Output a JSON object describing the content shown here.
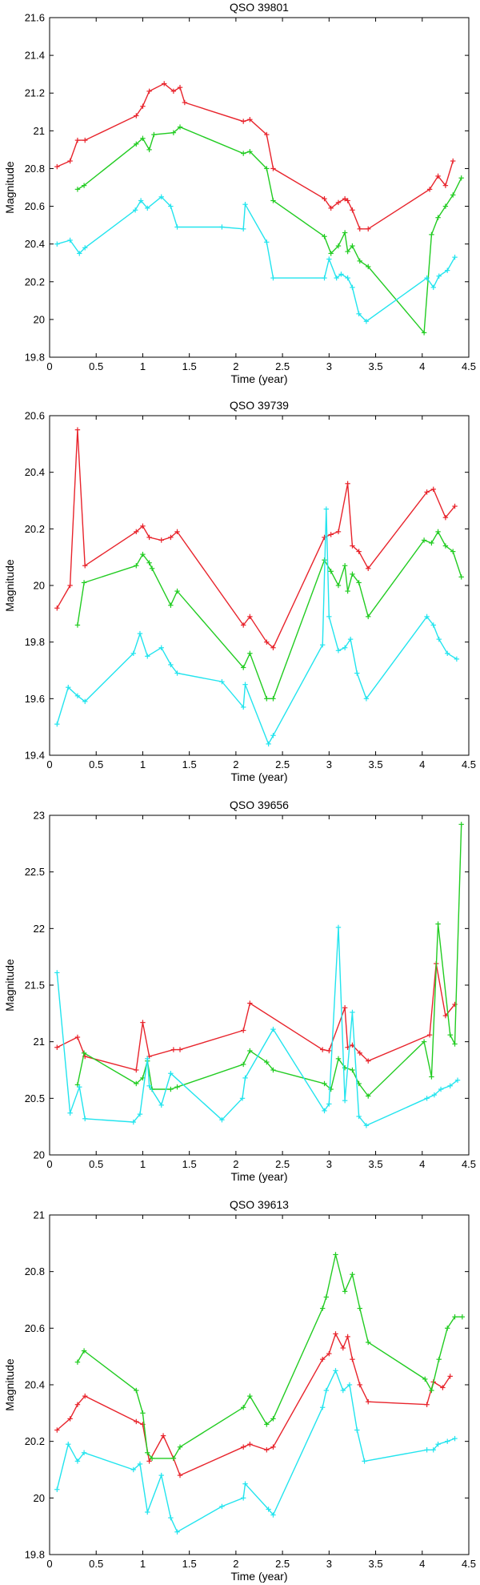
{
  "colors": {
    "red": "#e8242c",
    "green": "#22cc22",
    "cyan": "#22e4ee"
  },
  "chart_data": [
    {
      "type": "line",
      "title": "QSO 39801",
      "xlabel": "Time (year)",
      "ylabel": "Magnitude",
      "xlim": [
        0,
        4.5
      ],
      "ylim": [
        19.8,
        21.6
      ],
      "xticks": [
        0,
        0.5,
        1,
        1.5,
        2,
        2.5,
        3,
        3.5,
        4,
        4.5
      ],
      "xtick_labels": [
        "0",
        "0.5",
        "1",
        "1.5",
        "2",
        "2.5",
        "3",
        "3.5",
        "4",
        "4.5"
      ],
      "yticks": [
        19.8,
        20,
        20.2,
        20.4,
        20.6,
        20.8,
        21,
        21.2,
        21.4,
        21.6
      ],
      "ytick_labels": [
        "19.8",
        "20",
        "20.2",
        "20.4",
        "20.6",
        "20.8",
        "21",
        "21.2",
        "21.4",
        "21.6"
      ],
      "series": [
        {
          "name": "red",
          "color": "red",
          "x": [
            0.08,
            0.22,
            0.3,
            0.38,
            0.93,
            1.0,
            1.07,
            1.23,
            1.33,
            1.4,
            1.45,
            2.08,
            2.15,
            2.33,
            2.4,
            2.95,
            3.02,
            3.1,
            3.17,
            3.2,
            3.25,
            3.33,
            3.42,
            4.08,
            4.17,
            4.25,
            4.33
          ],
          "y": [
            20.81,
            20.84,
            20.95,
            20.95,
            21.08,
            21.13,
            21.21,
            21.25,
            21.21,
            21.23,
            21.15,
            21.05,
            21.06,
            20.98,
            20.8,
            20.64,
            20.59,
            20.62,
            20.64,
            20.63,
            20.58,
            20.48,
            20.48,
            20.69,
            20.76,
            20.71,
            20.84
          ]
        },
        {
          "name": "green",
          "color": "green",
          "x": [
            0.3,
            0.37,
            0.93,
            1.0,
            1.07,
            1.12,
            1.33,
            1.4,
            2.08,
            2.15,
            2.33,
            2.4,
            2.95,
            3.02,
            3.1,
            3.17,
            3.2,
            3.25,
            3.33,
            3.42,
            4.02,
            4.1,
            4.17,
            4.25,
            4.33,
            4.42
          ],
          "y": [
            20.69,
            20.71,
            20.93,
            20.96,
            20.9,
            20.98,
            20.99,
            21.02,
            20.88,
            20.89,
            20.8,
            20.63,
            20.44,
            20.35,
            20.39,
            20.46,
            20.36,
            20.39,
            20.31,
            20.28,
            19.93,
            20.45,
            20.54,
            20.6,
            20.66,
            20.75
          ]
        },
        {
          "name": "cyan",
          "color": "cyan",
          "x": [
            0.08,
            0.22,
            0.32,
            0.38,
            0.92,
            0.98,
            1.05,
            1.2,
            1.3,
            1.37,
            1.85,
            2.08,
            2.1,
            2.33,
            2.4,
            2.95,
            3.0,
            3.08,
            3.13,
            3.2,
            3.25,
            3.32,
            3.4,
            4.05,
            4.12,
            4.18,
            4.27,
            4.35
          ],
          "y": [
            20.4,
            20.42,
            20.35,
            20.38,
            20.58,
            20.63,
            20.59,
            20.65,
            20.6,
            20.49,
            20.49,
            20.48,
            20.61,
            20.41,
            20.22,
            20.22,
            20.32,
            20.22,
            20.24,
            20.22,
            20.17,
            20.03,
            19.99,
            20.22,
            20.17,
            20.23,
            20.26,
            20.33
          ]
        }
      ]
    },
    {
      "type": "line",
      "title": "QSO 39739",
      "xlabel": "Time (year)",
      "ylabel": "Magnitude",
      "xlim": [
        0,
        4.5
      ],
      "ylim": [
        19.4,
        20.6
      ],
      "xticks": [
        0,
        0.5,
        1,
        1.5,
        2,
        2.5,
        3,
        3.5,
        4,
        4.5
      ],
      "xtick_labels": [
        "0",
        "0.5",
        "1",
        "1.5",
        "2",
        "2.5",
        "3",
        "3.5",
        "4",
        "4.5"
      ],
      "yticks": [
        19.4,
        19.6,
        19.8,
        20,
        20.2,
        20.4,
        20.6
      ],
      "ytick_labels": [
        "19.4",
        "19.6",
        "19.8",
        "20",
        "20.2",
        "20.4",
        "20.6"
      ],
      "series": [
        {
          "name": "red",
          "color": "red",
          "x": [
            0.08,
            0.22,
            0.3,
            0.38,
            0.93,
            1.0,
            1.07,
            1.2,
            1.3,
            1.37,
            2.08,
            2.15,
            2.33,
            2.4,
            2.95,
            3.02,
            3.1,
            3.2,
            3.25,
            3.32,
            3.42,
            4.05,
            4.12,
            4.25,
            4.35
          ],
          "y": [
            19.92,
            20.0,
            20.55,
            20.07,
            20.19,
            20.21,
            20.17,
            20.16,
            20.17,
            20.19,
            19.86,
            19.89,
            19.8,
            19.78,
            20.17,
            20.18,
            20.19,
            20.36,
            20.14,
            20.12,
            20.06,
            20.33,
            20.34,
            20.24,
            20.28
          ]
        },
        {
          "name": "green",
          "color": "green",
          "x": [
            0.3,
            0.37,
            0.93,
            1.0,
            1.07,
            1.1,
            1.3,
            1.37,
            2.08,
            2.15,
            2.33,
            2.4,
            2.95,
            3.02,
            3.1,
            3.17,
            3.2,
            3.25,
            3.32,
            3.42,
            4.02,
            4.1,
            4.17,
            4.25,
            4.33,
            4.42
          ],
          "y": [
            19.86,
            20.01,
            20.07,
            20.11,
            20.08,
            20.06,
            19.93,
            19.98,
            19.71,
            19.76,
            19.6,
            19.6,
            20.09,
            20.05,
            20.0,
            20.07,
            19.98,
            20.04,
            20.01,
            19.89,
            20.16,
            20.15,
            20.19,
            20.14,
            20.12,
            20.03
          ]
        },
        {
          "name": "cyan",
          "color": "cyan",
          "x": [
            0.08,
            0.2,
            0.3,
            0.38,
            0.9,
            0.97,
            1.05,
            1.2,
            1.3,
            1.37,
            1.85,
            2.08,
            2.1,
            2.35,
            2.4,
            2.93,
            2.97,
            3.0,
            3.1,
            3.17,
            3.23,
            3.3,
            3.4,
            4.05,
            4.12,
            4.18,
            4.27,
            4.37
          ],
          "y": [
            19.51,
            19.64,
            19.61,
            19.59,
            19.76,
            19.83,
            19.75,
            19.78,
            19.72,
            19.69,
            19.66,
            19.57,
            19.65,
            19.44,
            19.47,
            19.79,
            20.27,
            19.89,
            19.77,
            19.78,
            19.81,
            19.69,
            19.6,
            19.89,
            19.86,
            19.81,
            19.76,
            19.74
          ]
        }
      ]
    },
    {
      "type": "line",
      "title": "QSO 39656",
      "xlabel": "Time (year)",
      "ylabel": "Magnitude",
      "xlim": [
        0,
        4.5
      ],
      "ylim": [
        20,
        23
      ],
      "xticks": [
        0,
        0.5,
        1,
        1.5,
        2,
        2.5,
        3,
        3.5,
        4,
        4.5
      ],
      "xtick_labels": [
        "0",
        "0.5",
        "1",
        "1.5",
        "2",
        "2.5",
        "3",
        "3.5",
        "4",
        "4.5"
      ],
      "yticks": [
        20,
        20.5,
        21,
        21.5,
        22,
        22.5,
        23
      ],
      "ytick_labels": [
        "20",
        "20.5",
        "21",
        "21.5",
        "22",
        "22.5",
        "23"
      ],
      "series": [
        {
          "name": "red",
          "color": "red",
          "x": [
            0.08,
            0.3,
            0.38,
            0.93,
            1.0,
            1.07,
            1.33,
            1.4,
            2.08,
            2.15,
            2.93,
            3.0,
            3.17,
            3.2,
            3.25,
            3.33,
            3.42,
            4.08,
            4.15,
            4.25,
            4.35
          ],
          "y": [
            20.95,
            21.04,
            20.87,
            20.75,
            21.17,
            20.87,
            20.93,
            20.93,
            21.1,
            21.34,
            20.93,
            20.92,
            21.3,
            20.95,
            20.97,
            20.9,
            20.83,
            21.06,
            21.69,
            21.23,
            21.33
          ]
        },
        {
          "name": "green",
          "color": "green",
          "x": [
            0.3,
            0.37,
            0.93,
            1.0,
            1.05,
            1.1,
            1.3,
            1.37,
            2.08,
            2.15,
            2.33,
            2.4,
            2.95,
            3.02,
            3.1,
            3.17,
            3.25,
            3.32,
            3.42,
            4.02,
            4.1,
            4.17,
            4.3,
            4.35,
            4.42
          ],
          "y": [
            20.62,
            20.9,
            20.63,
            20.68,
            20.83,
            20.58,
            20.58,
            20.6,
            20.8,
            20.92,
            20.82,
            20.75,
            20.63,
            20.58,
            20.85,
            20.77,
            20.75,
            20.63,
            20.52,
            21.0,
            20.69,
            22.04,
            21.06,
            20.98,
            22.92
          ]
        },
        {
          "name": "cyan",
          "color": "cyan",
          "x": [
            0.08,
            0.22,
            0.32,
            0.38,
            0.9,
            0.97,
            1.05,
            1.07,
            1.2,
            1.3,
            1.85,
            2.07,
            2.1,
            2.4,
            2.95,
            3.0,
            3.1,
            3.17,
            3.25,
            3.32,
            3.4,
            4.05,
            4.13,
            4.2,
            4.3,
            4.38
          ],
          "y": [
            21.61,
            20.37,
            20.6,
            20.32,
            20.29,
            20.36,
            20.85,
            20.61,
            20.44,
            20.72,
            20.31,
            20.5,
            20.68,
            21.11,
            20.39,
            20.45,
            22.01,
            20.48,
            21.26,
            20.34,
            20.26,
            20.5,
            20.53,
            20.58,
            20.61,
            20.66
          ]
        }
      ]
    },
    {
      "type": "line",
      "title": "QSO 39613",
      "xlabel": "Time (year)",
      "ylabel": "Magnitude",
      "xlim": [
        0,
        4.5
      ],
      "ylim": [
        19.8,
        21
      ],
      "xticks": [
        0,
        0.5,
        1,
        1.5,
        2,
        2.5,
        3,
        3.5,
        4,
        4.5
      ],
      "xtick_labels": [
        "0",
        "0.5",
        "1",
        "1.5",
        "2",
        "2.5",
        "3",
        "3.5",
        "4",
        "4.5"
      ],
      "yticks": [
        19.8,
        20,
        20.2,
        20.4,
        20.6,
        20.8,
        21
      ],
      "ytick_labels": [
        "19.8",
        "20",
        "20.2",
        "20.4",
        "20.6",
        "20.8",
        "21"
      ],
      "series": [
        {
          "name": "red",
          "color": "red",
          "x": [
            0.08,
            0.22,
            0.3,
            0.38,
            0.93,
            1.0,
            1.07,
            1.22,
            1.33,
            1.4,
            2.08,
            2.15,
            2.33,
            2.4,
            2.93,
            3.0,
            3.07,
            3.15,
            3.2,
            3.25,
            3.33,
            3.42,
            4.05,
            4.12,
            4.22,
            4.3
          ],
          "y": [
            20.24,
            20.28,
            20.33,
            20.36,
            20.27,
            20.26,
            20.13,
            20.22,
            20.14,
            20.08,
            20.18,
            20.19,
            20.17,
            20.18,
            20.49,
            20.51,
            20.58,
            20.53,
            20.57,
            20.49,
            20.4,
            20.34,
            20.33,
            20.41,
            20.39,
            20.43
          ]
        },
        {
          "name": "green",
          "color": "green",
          "x": [
            0.3,
            0.37,
            0.93,
            1.0,
            1.05,
            1.1,
            1.33,
            1.4,
            2.08,
            2.15,
            2.33,
            2.4,
            2.93,
            2.97,
            3.07,
            3.17,
            3.25,
            3.33,
            3.42,
            4.03,
            4.1,
            4.18,
            4.27,
            4.35,
            4.43
          ],
          "y": [
            20.48,
            20.52,
            20.38,
            20.3,
            20.16,
            20.14,
            20.14,
            20.18,
            20.32,
            20.36,
            20.26,
            20.28,
            20.67,
            20.71,
            20.86,
            20.73,
            20.79,
            20.67,
            20.55,
            20.42,
            20.38,
            20.49,
            20.6,
            20.64,
            20.64
          ]
        },
        {
          "name": "cyan",
          "color": "cyan",
          "x": [
            0.08,
            0.2,
            0.3,
            0.37,
            0.9,
            0.97,
            1.05,
            1.2,
            1.3,
            1.37,
            1.85,
            2.08,
            2.1,
            2.35,
            2.4,
            2.93,
            2.97,
            3.07,
            3.15,
            3.22,
            3.3,
            3.38,
            4.05,
            4.12,
            4.17,
            4.27,
            4.35
          ],
          "y": [
            20.03,
            20.19,
            20.13,
            20.16,
            20.1,
            20.12,
            19.95,
            20.08,
            19.93,
            19.88,
            19.97,
            20.0,
            20.05,
            19.96,
            19.94,
            20.32,
            20.38,
            20.45,
            20.38,
            20.4,
            20.24,
            20.13,
            20.17,
            20.17,
            20.19,
            20.2,
            20.21
          ]
        }
      ]
    }
  ]
}
